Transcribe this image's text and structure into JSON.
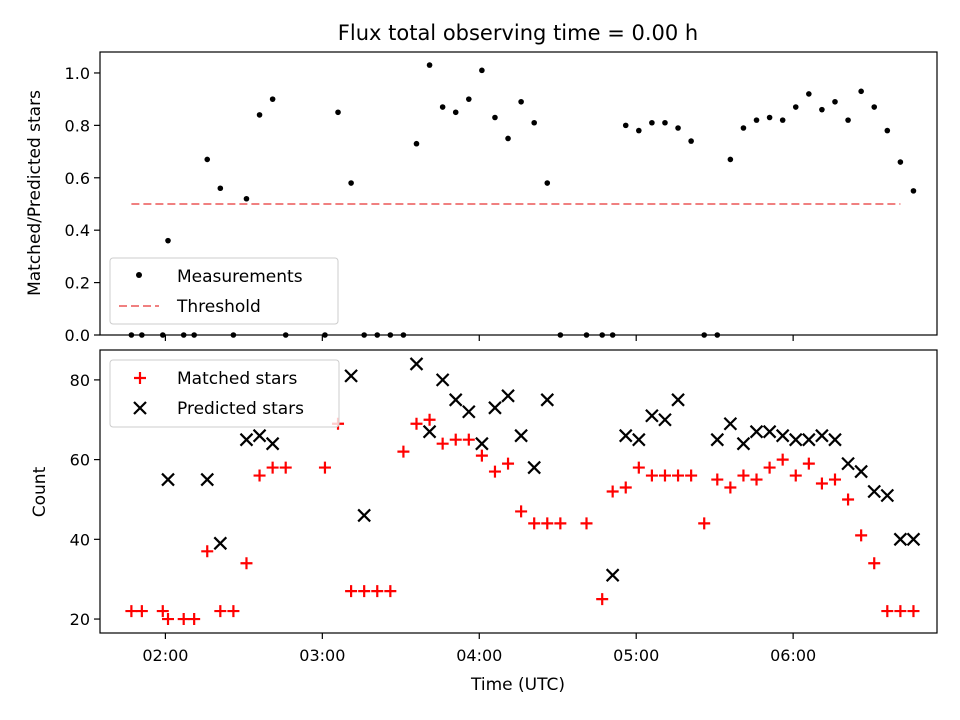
{
  "figure": {
    "title": "Flux total observing time = 0.00 h",
    "xlabel": "Time (UTC)",
    "x_ticks": [
      "02:00",
      "03:00",
      "04:00",
      "05:00",
      "06:00"
    ]
  },
  "chart_data": [
    {
      "type": "scatter",
      "title": "Flux total observing time = 0.00 h",
      "ylabel": "Matched/Predicted stars",
      "xlim": [
        "01:35",
        "06:55"
      ],
      "ylim": [
        0,
        1.08
      ],
      "y_ticks": [
        "0.0",
        "0.2",
        "0.4",
        "0.6",
        "0.8",
        "1.0"
      ],
      "y_tick_values": [
        0,
        0.2,
        0.4,
        0.6,
        0.8,
        1.0
      ],
      "legend_position": "lower-left",
      "series": [
        {
          "name": "Measurements",
          "kind": "scatter",
          "marker": "dot",
          "color": "#000000",
          "x": [
            "01:47",
            "01:51",
            "01:59",
            "02:01",
            "02:07",
            "02:11",
            "02:16",
            "02:21",
            "02:26",
            "02:31",
            "02:36",
            "02:41",
            "02:46",
            "03:01",
            "03:06",
            "03:11",
            "03:16",
            "03:21",
            "03:26",
            "03:31",
            "03:36",
            "03:41",
            "03:46",
            "03:51",
            "03:56",
            "04:01",
            "04:06",
            "04:11",
            "04:16",
            "04:21",
            "04:26",
            "04:31",
            "04:41",
            "04:47",
            "04:51",
            "04:56",
            "05:01",
            "05:06",
            "05:11",
            "05:16",
            "05:21",
            "05:26",
            "05:31",
            "05:36",
            "05:41",
            "05:46",
            "05:51",
            "05:56",
            "06:01",
            "06:06",
            "06:11",
            "06:16",
            "06:21",
            "06:26",
            "06:31",
            "06:36",
            "06:41",
            "06:46"
          ],
          "y": [
            0,
            0,
            0,
            0.36,
            0,
            0,
            0.67,
            0.56,
            0,
            0.52,
            0.84,
            0.9,
            0,
            0,
            0.85,
            0.58,
            0,
            0,
            0,
            0,
            0.73,
            1.03,
            0.87,
            0.85,
            0.9,
            1.01,
            0.83,
            0.75,
            0.89,
            0.81,
            0.58,
            0,
            0,
            0,
            0,
            0.8,
            0.78,
            0.81,
            0.81,
            0.79,
            0.74,
            0,
            0,
            0.67,
            0.79,
            0.82,
            0.83,
            0.82,
            0.87,
            0.92,
            0.86,
            0.89,
            0.82,
            0.93,
            0.87,
            0.78,
            0.66,
            0.55
          ]
        },
        {
          "name": "Threshold",
          "kind": "line",
          "style": "dashed",
          "color": "#f08080",
          "x": [
            "01:47",
            "06:41"
          ],
          "y": [
            0.5,
            0.5
          ]
        }
      ]
    },
    {
      "type": "scatter",
      "ylabel": "Count",
      "xlim": [
        "01:35",
        "06:55"
      ],
      "ylim": [
        16.5,
        87.5
      ],
      "y_ticks": [
        "20",
        "40",
        "60",
        "80"
      ],
      "y_tick_values": [
        20,
        40,
        60,
        80
      ],
      "legend_position": "top-left",
      "series": [
        {
          "name": "Matched stars",
          "marker": "plus",
          "color": "#ff0000",
          "x": [
            "01:47",
            "01:51",
            "01:59",
            "02:01",
            "02:07",
            "02:11",
            "02:16",
            "02:21",
            "02:26",
            "02:31",
            "02:36",
            "02:41",
            "02:46",
            "03:01",
            "03:06",
            "03:11",
            "03:16",
            "03:21",
            "03:26",
            "03:31",
            "03:36",
            "03:41",
            "03:46",
            "03:51",
            "03:56",
            "04:01",
            "04:06",
            "04:11",
            "04:16",
            "04:21",
            "04:26",
            "04:31",
            "04:41",
            "04:47",
            "04:51",
            "04:56",
            "05:01",
            "05:06",
            "05:11",
            "05:16",
            "05:21",
            "05:26",
            "05:31",
            "05:36",
            "05:41",
            "05:46",
            "05:51",
            "05:56",
            "06:01",
            "06:06",
            "06:11",
            "06:16",
            "06:21",
            "06:26",
            "06:31",
            "06:36",
            "06:41",
            "06:46"
          ],
          "y": [
            22,
            22,
            22,
            20,
            20,
            20,
            37,
            22,
            22,
            34,
            56,
            58,
            58,
            58,
            69,
            27,
            27,
            27,
            27,
            62,
            69,
            70,
            64,
            65,
            65,
            61,
            57,
            59,
            47,
            44,
            44,
            44,
            44,
            25,
            52,
            53,
            58,
            56,
            56,
            56,
            56,
            44,
            55,
            53,
            56,
            55,
            58,
            60,
            56,
            59,
            54,
            55,
            50,
            41,
            34,
            22,
            22,
            22
          ]
        },
        {
          "name": "Predicted stars",
          "marker": "x",
          "color": "#000000",
          "x": [
            "02:01",
            "02:16",
            "02:21",
            "02:31",
            "02:36",
            "02:41",
            "03:11",
            "03:16",
            "03:36",
            "03:41",
            "03:46",
            "03:51",
            "03:56",
            "04:01",
            "04:06",
            "04:11",
            "04:16",
            "04:21",
            "04:26",
            "04:51",
            "04:56",
            "05:01",
            "05:06",
            "05:11",
            "05:16",
            "05:31",
            "05:36",
            "05:41",
            "05:46",
            "05:51",
            "05:56",
            "06:01",
            "06:06",
            "06:11",
            "06:16",
            "06:21",
            "06:26",
            "06:31",
            "06:36",
            "06:41",
            "06:46"
          ],
          "y": [
            55,
            55,
            39,
            65,
            66,
            64,
            81,
            46,
            84,
            67,
            80,
            75,
            72,
            64,
            73,
            76,
            66,
            58,
            75,
            31,
            66,
            65,
            71,
            70,
            75,
            65,
            69,
            64,
            67,
            67,
            66,
            65,
            65,
            66,
            65,
            59,
            57,
            52,
            51,
            40,
            40
          ]
        }
      ]
    }
  ]
}
